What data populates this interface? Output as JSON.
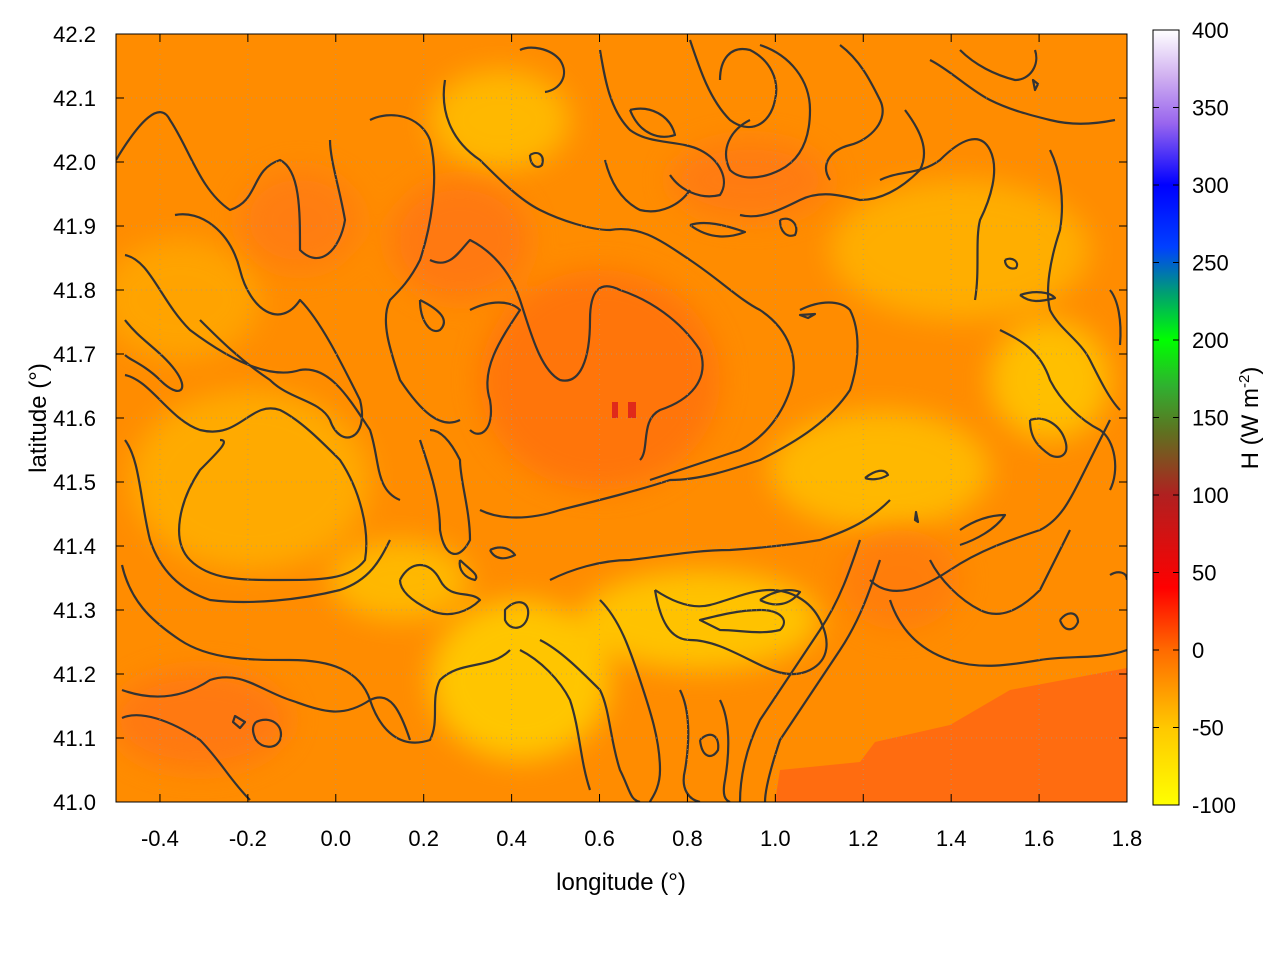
{
  "chart_data": {
    "type": "heatmap",
    "title": "",
    "xlabel": "longitude (°)",
    "ylabel": "latitude (°)",
    "xlim": [
      -0.5,
      1.8
    ],
    "ylim": [
      41.0,
      42.2
    ],
    "x_ticks": [
      "-0.4",
      "-0.2",
      "0.0",
      "0.2",
      "0.4",
      "0.6",
      "0.8",
      "1.0",
      "1.2",
      "1.4",
      "1.6",
      "1.8"
    ],
    "y_ticks": [
      "41.0",
      "41.1",
      "41.2",
      "41.3",
      "41.4",
      "41.5",
      "41.6",
      "41.7",
      "41.8",
      "41.9",
      "42.0",
      "42.1",
      "42.2"
    ],
    "grid": true,
    "contours": true,
    "colorbar": {
      "label_main": "H (W m",
      "label_sup": "-2",
      "label_end": ")",
      "range": [
        -100,
        400
      ],
      "ticks": [
        "400",
        "350",
        "300",
        "250",
        "200",
        "150",
        "100",
        "50",
        "0",
        "-50",
        "-100"
      ],
      "stops": [
        {
          "value": -100,
          "color": "#ffff00"
        },
        {
          "value": -50,
          "color": "#ffc800"
        },
        {
          "value": 0,
          "color": "#ff6a00"
        },
        {
          "value": 40,
          "color": "#ff0000"
        },
        {
          "value": 100,
          "color": "#b02020"
        },
        {
          "value": 140,
          "color": "#607020"
        },
        {
          "value": 170,
          "color": "#30b030"
        },
        {
          "value": 200,
          "color": "#00ff00"
        },
        {
          "value": 230,
          "color": "#00a070"
        },
        {
          "value": 260,
          "color": "#0040ff"
        },
        {
          "value": 300,
          "color": "#0000ff"
        },
        {
          "value": 340,
          "color": "#9966ee"
        },
        {
          "value": 370,
          "color": "#d0b0f0"
        },
        {
          "value": 400,
          "color": "#ffffff"
        }
      ]
    },
    "colors": {
      "field_base": "#ff8c00",
      "field_warm": "#ff6a1a",
      "field_cool": "#ffd000",
      "contour": "#333333"
    }
  }
}
